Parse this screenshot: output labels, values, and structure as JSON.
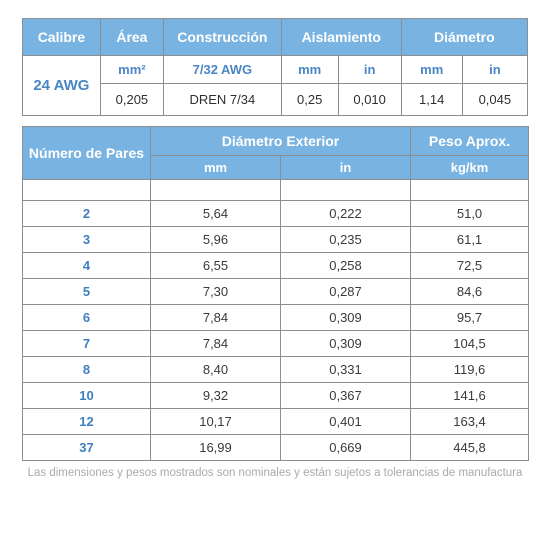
{
  "colors": {
    "header_bg": "#79b3e1",
    "header_fg": "#ffffff",
    "border": "#8a8f94",
    "accent_text": "#3f7fc1",
    "body_text": "#3a3a3a",
    "footnote": "#a6aab0",
    "page_bg": "#ffffff"
  },
  "table1": {
    "type": "table",
    "headers": {
      "calibre": "Calibre",
      "area": "Área",
      "construccion": "Construcción",
      "aislamiento": "Aislamiento",
      "diametro": "Diámetro"
    },
    "sub": {
      "area_unit": "mm²",
      "construccion": "7/32 AWG",
      "ais_mm": "mm",
      "ais_in": "in",
      "dia_mm": "mm",
      "dia_in": "in"
    },
    "row": {
      "calibre": "24 AWG",
      "area": "0,205",
      "construccion": "DREN 7/34",
      "ais_mm": "0,25",
      "ais_in": "0,010",
      "dia_mm": "1,14",
      "dia_in": "0,045"
    }
  },
  "table2": {
    "type": "table",
    "headers": {
      "pares": "Número de Pares",
      "diam_ext": "Diámetro Exterior",
      "peso": "Peso Aprox.",
      "mm": "mm",
      "in": "in",
      "kgkm": "kg/km"
    },
    "columns": [
      "pares",
      "mm",
      "in",
      "kgkm"
    ],
    "rows": [
      {
        "pares": "2",
        "mm": "5,64",
        "in": "0,222",
        "kgkm": "51,0"
      },
      {
        "pares": "3",
        "mm": "5,96",
        "in": "0,235",
        "kgkm": "61,1"
      },
      {
        "pares": "4",
        "mm": "6,55",
        "in": "0,258",
        "kgkm": "72,5"
      },
      {
        "pares": "5",
        "mm": "7,30",
        "in": "0,287",
        "kgkm": "84,6"
      },
      {
        "pares": "6",
        "mm": "7,84",
        "in": "0,309",
        "kgkm": "95,7"
      },
      {
        "pares": "7",
        "mm": "7,84",
        "in": "0,309",
        "kgkm": "104,5"
      },
      {
        "pares": "8",
        "mm": "8,40",
        "in": "0,331",
        "kgkm": "119,6"
      },
      {
        "pares": "10",
        "mm": "9,32",
        "in": "0,367",
        "kgkm": "141,6"
      },
      {
        "pares": "12",
        "mm": "10,17",
        "in": "0,401",
        "kgkm": "163,4"
      },
      {
        "pares": "37",
        "mm": "16,99",
        "in": "0,669",
        "kgkm": "445,8"
      }
    ]
  },
  "footnote": "Las dimensiones y pesos mostrados son nominales y están sujetos a tolerancias de manufactura"
}
